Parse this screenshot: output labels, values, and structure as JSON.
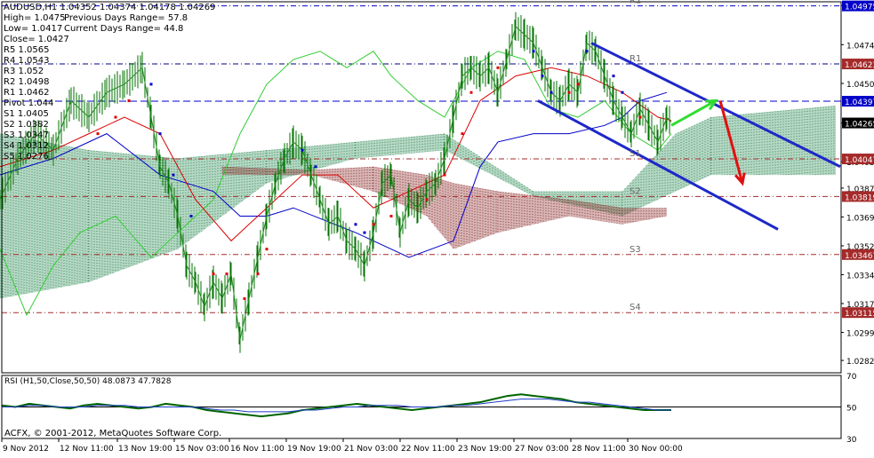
{
  "header": {
    "symbol_line": "AUDUSD,H1  1.04352 1.04374 1.04178 1.04269",
    "stats": [
      {
        "label": "High= 1.0475",
        "extra": "Previous Days Range= 57.8"
      },
      {
        "label": "Low= 1.0417",
        "extra": "Current Days Range= 44.8"
      },
      {
        "label": "Close= 1.0427",
        "extra": ""
      }
    ]
  },
  "pivot_table": [
    "R5 1.0565",
    "R4 1.0543",
    "R3 1.052",
    "R2 1.0498",
    "R1 1.0462",
    "Pivot 1.044",
    "S1 1.0405",
    "S2 1.0382",
    "S3 1.0347",
    "S4 1.0312",
    "S5 1.0276"
  ],
  "chart_data": [
    {
      "type": "line",
      "title": "AUDUSD,H1",
      "xlabel": "",
      "ylabel": "",
      "ylim": [
        1.0275,
        1.05
      ],
      "grid": false,
      "x_tick_labels": [
        "9 Nov 2012",
        "12 Nov 11:00",
        "13 Nov 19:00",
        "15 Nov 03:00",
        "16 Nov 11:00",
        "19 Nov 19:00",
        "21 Nov 03:00",
        "22 Nov 11:00",
        "23 Nov 19:00",
        "27 Nov 03:00",
        "28 Nov 11:00",
        "30 Nov 00:00"
      ],
      "y_tick_labels": [
        "1.04975",
        "1.04740",
        "1.04505",
        "1.04265",
        "1.04030",
        "1.03870",
        "1.03695",
        "1.03520",
        "1.03345",
        "1.03170",
        "1.02995",
        "1.02825"
      ],
      "price_markers": [
        {
          "value": 1.04975,
          "label": "1.04975",
          "color": "#0000c8"
        },
        {
          "value": 1.04623,
          "label": "1.04623",
          "color": "#a52a2a"
        },
        {
          "value": 1.04397,
          "label": "1.04397",
          "color": "#0000c8"
        },
        {
          "value": 1.04265,
          "label": "1.04265",
          "color": "#000000"
        },
        {
          "value": 1.04047,
          "label": "1.04047",
          "color": "#a52a2a"
        },
        {
          "value": 1.03819,
          "label": "1.03819",
          "color": "#a52a2a"
        },
        {
          "value": 1.03467,
          "label": "1.03467",
          "color": "#a52a2a"
        },
        {
          "value": 1.03115,
          "label": "1.03115",
          "color": "#a52a2a"
        }
      ],
      "pivot_lines": [
        {
          "name": "R2",
          "value": 1.04975,
          "color": "#0000c8",
          "style": "dashdot"
        },
        {
          "name": "R1",
          "value": 1.04623,
          "color": "#000080",
          "style": "dashdot"
        },
        {
          "name": "",
          "value": 1.04397,
          "color": "#0000c8",
          "style": "dashed"
        },
        {
          "name": "S1",
          "value": 1.04047,
          "color": "#a52a2a",
          "style": "dashdot"
        },
        {
          "name": "S2",
          "value": 1.03819,
          "color": "#a52a2a",
          "style": "dashdot"
        },
        {
          "name": "S3",
          "value": 1.03467,
          "color": "#a52a2a",
          "style": "dashdot"
        },
        {
          "name": "S4",
          "value": 1.03115,
          "color": "#a52a2a",
          "style": "dashdot"
        }
      ],
      "price_path": [
        [
          0,
          1.038
        ],
        [
          20,
          1.0405
        ],
        [
          40,
          1.042
        ],
        [
          60,
          1.041
        ],
        [
          80,
          1.044
        ],
        [
          100,
          1.043
        ],
        [
          120,
          1.0445
        ],
        [
          140,
          1.045
        ],
        [
          160,
          1.046
        ],
        [
          170,
          1.043
        ],
        [
          180,
          1.04
        ],
        [
          190,
          1.039
        ],
        [
          200,
          1.037
        ],
        [
          210,
          1.034
        ],
        [
          220,
          1.033
        ],
        [
          230,
          1.0315
        ],
        [
          240,
          1.033
        ],
        [
          250,
          1.032
        ],
        [
          260,
          1.0335
        ],
        [
          270,
          1.0295
        ],
        [
          280,
          1.032
        ],
        [
          290,
          1.0345
        ],
        [
          300,
          1.037
        ],
        [
          310,
          1.039
        ],
        [
          320,
          1.0405
        ],
        [
          330,
          1.0415
        ],
        [
          340,
          1.041
        ],
        [
          350,
          1.0395
        ],
        [
          360,
          1.038
        ],
        [
          370,
          1.0365
        ],
        [
          380,
          1.037
        ],
        [
          390,
          1.0355
        ],
        [
          400,
          1.035
        ],
        [
          410,
          1.034
        ],
        [
          420,
          1.036
        ],
        [
          430,
          1.039
        ],
        [
          440,
          1.0395
        ],
        [
          450,
          1.036
        ],
        [
          460,
          1.038
        ],
        [
          470,
          1.0375
        ],
        [
          480,
          1.0385
        ],
        [
          490,
          1.039
        ],
        [
          500,
          1.0405
        ],
        [
          510,
          1.043
        ],
        [
          520,
          1.0455
        ],
        [
          530,
          1.046
        ],
        [
          540,
          1.0455
        ],
        [
          550,
          1.046
        ],
        [
          560,
          1.0445
        ],
        [
          570,
          1.0465
        ],
        [
          580,
          1.0485
        ],
        [
          590,
          1.048
        ],
        [
          600,
          1.0475
        ],
        [
          610,
          1.046
        ],
        [
          620,
          1.0445
        ],
        [
          630,
          1.044
        ],
        [
          640,
          1.045
        ],
        [
          650,
          1.0445
        ],
        [
          660,
          1.0475
        ],
        [
          670,
          1.047
        ],
        [
          680,
          1.0455
        ],
        [
          690,
          1.044
        ],
        [
          700,
          1.043
        ],
        [
          710,
          1.042
        ],
        [
          720,
          1.0435
        ],
        [
          730,
          1.0425
        ],
        [
          740,
          1.0415
        ],
        [
          750,
          1.043
        ],
        [
          755,
          1.0427
        ]
      ],
      "ichimoku_green_cloud": [
        [
          0,
          1.042,
          1.032
        ],
        [
          100,
          1.041,
          1.033
        ],
        [
          200,
          1.0405,
          1.035
        ],
        [
          300,
          1.041,
          1.039
        ],
        [
          400,
          1.0415,
          1.0405
        ],
        [
          500,
          1.042,
          1.041
        ],
        [
          600,
          1.0385,
          1.0382
        ],
        [
          700,
          1.0385,
          1.037
        ],
        [
          760,
          1.042,
          1.0385
        ],
        [
          800,
          1.043,
          1.0395
        ],
        [
          940,
          1.0437,
          1.0395
        ]
      ],
      "ichimoku_red_cloud": [
        [
          250,
          1.04,
          1.0395
        ],
        [
          350,
          1.0398,
          1.0395
        ],
        [
          420,
          1.04,
          1.0385
        ],
        [
          480,
          1.0395,
          1.037
        ],
        [
          510,
          1.039,
          1.035
        ],
        [
          560,
          1.0385,
          1.036
        ],
        [
          640,
          1.038,
          1.037
        ],
        [
          700,
          1.0375,
          1.0365
        ],
        [
          750,
          1.0375,
          1.037
        ]
      ],
      "green_line": [
        [
          0,
          1.035
        ],
        [
          30,
          1.031
        ],
        [
          60,
          1.034
        ],
        [
          90,
          1.036
        ],
        [
          130,
          1.037
        ],
        [
          170,
          1.0345
        ],
        [
          200,
          1.036
        ],
        [
          240,
          1.038
        ],
        [
          270,
          1.042
        ],
        [
          300,
          1.045
        ],
        [
          330,
          1.0465
        ],
        [
          360,
          1.047
        ],
        [
          390,
          1.046
        ],
        [
          420,
          1.047
        ],
        [
          440,
          1.0455
        ],
        [
          470,
          1.044
        ],
        [
          500,
          1.043
        ],
        [
          530,
          1.046
        ],
        [
          560,
          1.047
        ],
        [
          590,
          1.0465
        ],
        [
          620,
          1.0435
        ],
        [
          650,
          1.043
        ],
        [
          680,
          1.044
        ],
        [
          710,
          1.042
        ],
        [
          740,
          1.041
        ],
        [
          755,
          1.042
        ]
      ],
      "blue_line": [
        [
          0,
          1.0395
        ],
        [
          60,
          1.0405
        ],
        [
          120,
          1.042
        ],
        [
          180,
          1.0395
        ],
        [
          240,
          1.0385
        ],
        [
          270,
          1.037
        ],
        [
          300,
          1.037
        ],
        [
          330,
          1.0375
        ],
        [
          400,
          1.036
        ],
        [
          460,
          1.0345
        ],
        [
          510,
          1.0355
        ],
        [
          540,
          1.04
        ],
        [
          560,
          1.0415
        ],
        [
          600,
          1.042
        ],
        [
          640,
          1.042
        ],
        [
          680,
          1.0425
        ],
        [
          700,
          1.043
        ],
        [
          720,
          1.044
        ],
        [
          750,
          1.0445
        ]
      ],
      "red_line": [
        [
          0,
          1.04
        ],
        [
          60,
          1.041
        ],
        [
          100,
          1.042
        ],
        [
          140,
          1.043
        ],
        [
          180,
          1.042
        ],
        [
          220,
          1.038
        ],
        [
          260,
          1.0355
        ],
        [
          300,
          1.0375
        ],
        [
          340,
          1.0395
        ],
        [
          380,
          1.0395
        ],
        [
          420,
          1.0375
        ],
        [
          460,
          1.0385
        ],
        [
          500,
          1.0395
        ],
        [
          540,
          1.044
        ],
        [
          580,
          1.0455
        ],
        [
          620,
          1.046
        ],
        [
          660,
          1.0455
        ],
        [
          700,
          1.0445
        ],
        [
          740,
          1.043
        ],
        [
          755,
          1.0428
        ]
      ],
      "psar_blue": [
        [
          170,
          1.045
        ],
        [
          180,
          1.042
        ],
        [
          195,
          1.0395
        ],
        [
          215,
          1.037
        ],
        [
          340,
          1.041
        ],
        [
          355,
          1.04
        ],
        [
          400,
          1.0365
        ],
        [
          410,
          1.036
        ],
        [
          600,
          1.047
        ],
        [
          610,
          1.0455
        ],
        [
          620,
          1.0445
        ],
        [
          660,
          1.047
        ],
        [
          690,
          1.0455
        ],
        [
          700,
          1.0445
        ]
      ],
      "psar_red": [
        [
          110,
          1.042
        ],
        [
          130,
          1.043
        ],
        [
          145,
          1.044
        ],
        [
          240,
          1.0335
        ],
        [
          255,
          1.0335
        ],
        [
          275,
          1.032
        ],
        [
          290,
          1.0335
        ],
        [
          300,
          1.035
        ],
        [
          420,
          1.0365
        ],
        [
          440,
          1.037
        ],
        [
          480,
          1.038
        ],
        [
          500,
          1.0395
        ],
        [
          520,
          1.042
        ],
        [
          530,
          1.0445
        ],
        [
          560,
          1.046
        ],
        [
          640,
          1.0445
        ],
        [
          650,
          1.045
        ],
        [
          720,
          1.043
        ]
      ],
      "trend_channel": {
        "upper": [
          [
            665,
            1.0475
          ],
          [
            945,
            1.04
          ]
        ],
        "lower": [
          [
            605,
            1.044
          ],
          [
            875,
            1.0362
          ]
        ]
      },
      "forecast_arrows": {
        "green": [
          [
            755,
            1.0425
          ],
          [
            805,
            1.044
          ]
        ],
        "red": [
          [
            810,
            1.044
          ],
          [
            835,
            1.039
          ]
        ]
      }
    },
    {
      "type": "line",
      "title": "RSI (H1,50,Close,50,50) 48.0873 47.7828",
      "ylim": [
        30,
        70
      ],
      "level": 50,
      "y_tick_labels": [
        "70",
        "50",
        "30"
      ],
      "series": [
        {
          "values": [
            51,
            50,
            52,
            51,
            50,
            49,
            51,
            52,
            51,
            50,
            49,
            50,
            52,
            51,
            50,
            48,
            47,
            46,
            45,
            44,
            45,
            46,
            48,
            49,
            50,
            51,
            52,
            51,
            50,
            49,
            48,
            49,
            50,
            51,
            52,
            53,
            55,
            57,
            58,
            57,
            56,
            55,
            53,
            52,
            51,
            50,
            49,
            48,
            48,
            48
          ]
        },
        {
          "values": [
            50,
            50,
            51,
            51,
            50,
            50,
            50,
            51,
            51,
            51,
            50,
            50,
            50,
            50,
            50,
            49,
            48,
            48,
            47,
            47,
            47,
            47,
            48,
            48,
            49,
            50,
            50,
            51,
            51,
            51,
            50,
            50,
            50,
            51,
            51,
            52,
            53,
            54,
            55,
            55,
            55,
            54,
            53,
            53,
            52,
            51,
            50,
            49,
            48,
            48
          ]
        }
      ]
    }
  ],
  "footer_text": "ACFX, © 2001-2012, MetaQuotes Software Corp.",
  "colors": {
    "candles": "#007000",
    "green_line": "#32cd32",
    "blue_line": "#0000c8",
    "red_line": "#dc0000",
    "cloud_green": "#2e8b57",
    "cloud_red": "#8b2a2a",
    "rsi_green": "#006400",
    "rsi_blue": "#1e3cc8",
    "rsi_red": "#dc0000"
  }
}
